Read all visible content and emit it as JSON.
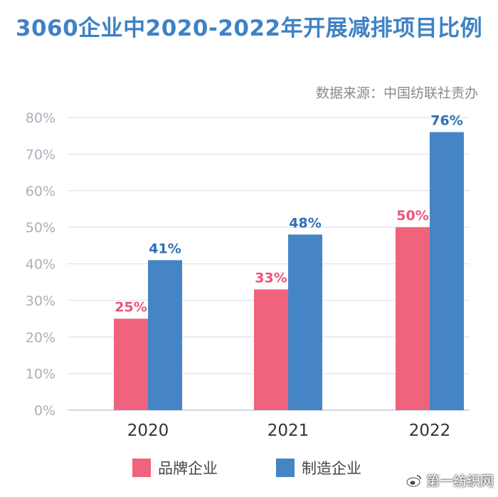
{
  "chart_data": {
    "type": "bar",
    "title": "3060企业中2020-2022年开展减排项目比例",
    "source": "数据来源：中国纺联社责办",
    "categories": [
      "2020",
      "2021",
      "2022"
    ],
    "series": [
      {
        "name": "品牌企业",
        "color": "#f0637c",
        "values": [
          25,
          33,
          50
        ],
        "labels": [
          "25%",
          "33%",
          "50%"
        ]
      },
      {
        "name": "制造企业",
        "color": "#4585c6",
        "values": [
          41,
          48,
          76
        ],
        "labels": [
          "41%",
          "48%",
          "76%"
        ]
      }
    ],
    "ylim": [
      0,
      80
    ],
    "yticks": [
      "0%",
      "10%",
      "20%",
      "30%",
      "40%",
      "50%",
      "60%",
      "70%",
      "80%"
    ],
    "grid": true,
    "legend_position": "bottom"
  },
  "watermark": {
    "text": "第一纺织网",
    "icon": "weibo-icon"
  }
}
